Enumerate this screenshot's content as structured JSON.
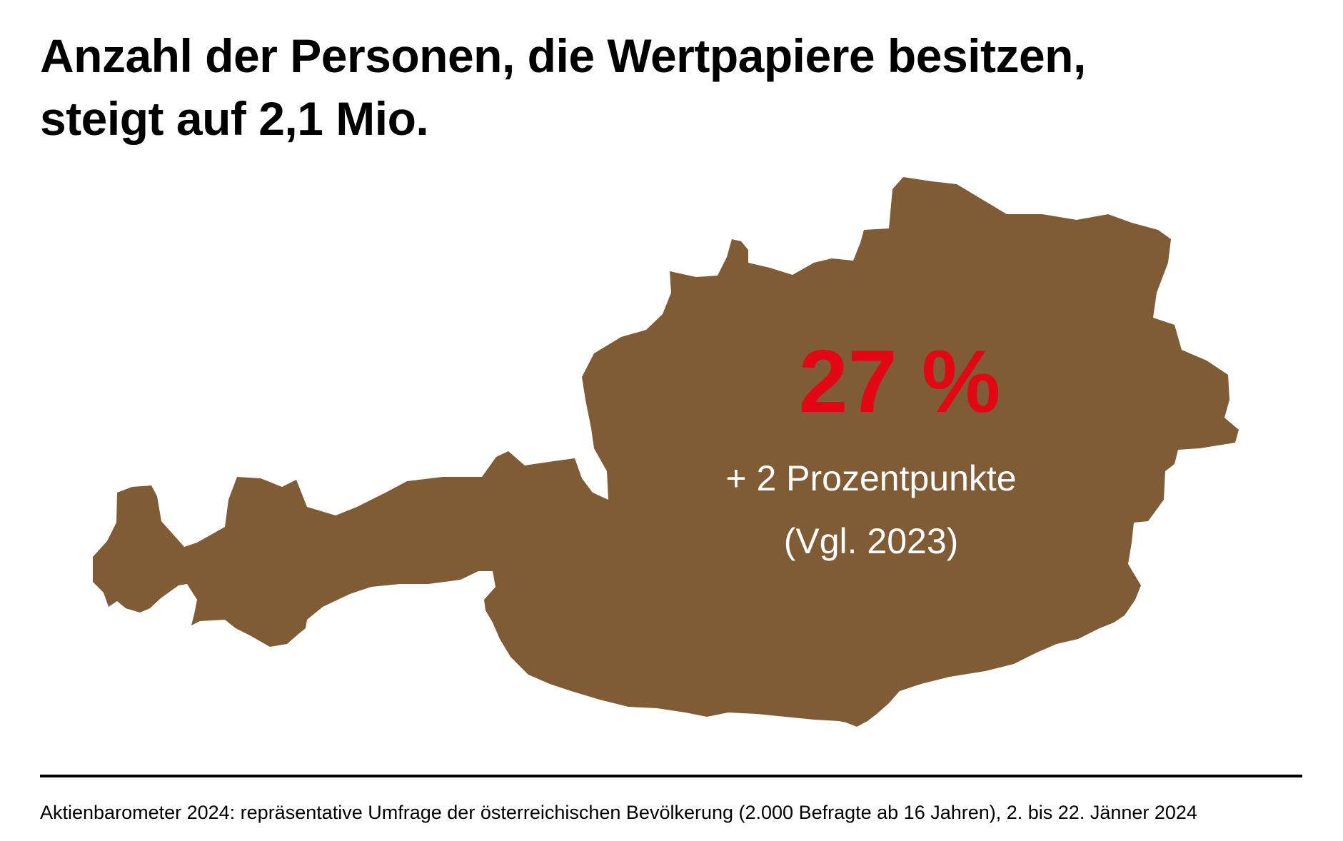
{
  "title": {
    "line1": "Anzahl der Personen, die Wertpapiere besitzen,",
    "line2": "steigt auf 2,1 Mio."
  },
  "map": {
    "region": "Austria",
    "fill_color": "#7f5b36"
  },
  "stat": {
    "value": "27 %",
    "value_color": "#e30613",
    "change": "+ 2 Prozentpunkte",
    "comparison": "(Vgl. 2023)",
    "text_color": "#ffffff"
  },
  "source": "Aktienbarometer 2024: repräsentative Umfrage der österreichischen Bevölkerung (2.000 Befragte ab 16 Jahren), 2. bis 22. Jänner 2024"
}
